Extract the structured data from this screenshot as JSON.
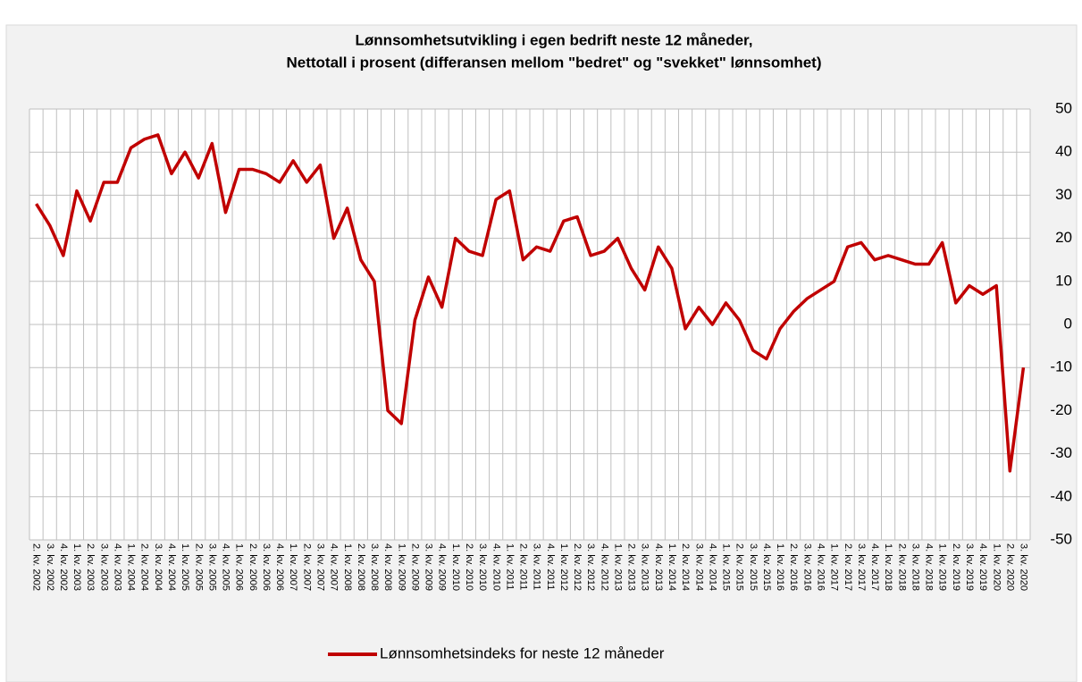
{
  "chart_data": {
    "type": "line",
    "title": "Lønnsomhetsutvikling i egen bedrift neste 12 måneder,",
    "subtitle": "Nettotall i prosent (differansen mellom \"bedret\" og \"svekket\" lønnsomhet)",
    "categories": [
      "2. kv. 2002",
      "3. kv. 2002",
      "4. kv. 2002",
      "1. kv. 2003",
      "2. kv. 2003",
      "3. kv. 2003",
      "4. kv. 2003",
      "1. kv. 2004",
      "2. kv. 2004",
      "3. kv. 2004",
      "4. kv. 2004",
      "1. kv. 2005",
      "2. kv. 2005",
      "3. kv. 2005",
      "4. kv. 2005",
      "1. kv. 2006",
      "2. kv. 2006",
      "3. kv. 2006",
      "4. kv. 2006",
      "1. kv. 2007",
      "2. kv. 2007",
      "3. kv. 2007",
      "4. kv. 2007",
      "1. kv. 2008",
      "2. kv. 2008",
      "3. kv. 2008",
      "4. kv. 2008",
      "1. kv. 2009",
      "2. kv. 2009",
      "3. kv. 2009",
      "4. kv. 2009",
      "1. kv. 2010",
      "2. kv. 2010",
      "3. kv. 2010",
      "4. kv. 2010",
      "1. kv. 2011",
      "2. kv. 2011",
      "3. kv. 2011",
      "4. kv. 2011",
      "1. kv. 2012",
      "2. kv. 2012",
      "3. kv. 2012",
      "4. kv. 2012",
      "1. kv. 2013",
      "2. kv. 2013",
      "3. kv. 2013",
      "4. kv. 2013",
      "1. kv. 2014",
      "2. kv. 2014",
      "3. kv. 2014",
      "4. kv. 2014",
      "1. kv. 2015",
      "2. kv. 2015",
      "3. kv. 2015",
      "4. kv. 2015",
      "1. kv. 2016",
      "2. kv. 2016",
      "3. kv. 2016",
      "4. kv. 2016",
      "1. kv. 2017",
      "2. kv. 2017",
      "3. kv. 2017",
      "4. kv. 2017",
      "1. kv. 2018",
      "2. kv. 2018",
      "3. kv. 2018",
      "4. kv. 2018",
      "1. kv. 2019",
      "2. kv. 2019",
      "3. kv. 2019",
      "4. kv. 2019",
      "1. kv. 2020",
      "2. kv. 2020",
      "3. kv. 2020"
    ],
    "series": [
      {
        "name": "Lønnsomhetsindeks for neste 12 måneder",
        "color": "#c00000",
        "values": [
          28,
          23,
          16,
          31,
          24,
          33,
          33,
          41,
          43,
          44,
          35,
          40,
          34,
          42,
          26,
          36,
          36,
          35,
          33,
          38,
          33,
          37,
          20,
          27,
          15,
          10,
          -20,
          -23,
          1,
          11,
          4,
          20,
          17,
          16,
          29,
          31,
          15,
          18,
          17,
          24,
          25,
          16,
          17,
          20,
          13,
          8,
          18,
          13,
          -1,
          4,
          0,
          5,
          1,
          -6,
          -8,
          -1,
          3,
          6,
          8,
          10,
          18,
          19,
          15,
          16,
          15,
          14,
          14,
          19,
          5,
          9,
          7,
          9,
          -34,
          -10
        ]
      }
    ],
    "ylim": [
      -50,
      50
    ],
    "yticks": [
      -50,
      -40,
      -30,
      -20,
      -10,
      0,
      10,
      20,
      30,
      40,
      50
    ],
    "grid": true,
    "legend": "bottom"
  }
}
